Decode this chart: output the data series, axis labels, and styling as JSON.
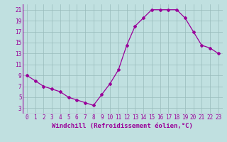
{
  "x": [
    0,
    1,
    2,
    3,
    4,
    5,
    6,
    7,
    8,
    9,
    10,
    11,
    12,
    13,
    14,
    15,
    16,
    17,
    18,
    19,
    20,
    21,
    22,
    23
  ],
  "y": [
    9,
    8,
    7,
    6.5,
    6,
    5,
    4.5,
    4,
    3.5,
    5.5,
    7.5,
    10,
    14.5,
    18,
    19.5,
    21,
    21,
    21,
    21,
    19.5,
    17,
    14.5,
    14,
    13
  ],
  "line_color": "#990099",
  "marker": "D",
  "marker_size": 2,
  "background_color": "#c0e0e0",
  "grid_color": "#99bbbb",
  "xlabel": "Windchill (Refroidissement éolien,°C)",
  "xlabel_fontsize": 6.5,
  "tick_fontsize": 5.5,
  "ylim": [
    2,
    22
  ],
  "yticks": [
    3,
    5,
    7,
    9,
    11,
    13,
    15,
    17,
    19,
    21
  ],
  "xlim": [
    -0.5,
    23.5
  ],
  "xticks": [
    0,
    1,
    2,
    3,
    4,
    5,
    6,
    7,
    8,
    9,
    10,
    11,
    12,
    13,
    14,
    15,
    16,
    17,
    18,
    19,
    20,
    21,
    22,
    23
  ]
}
